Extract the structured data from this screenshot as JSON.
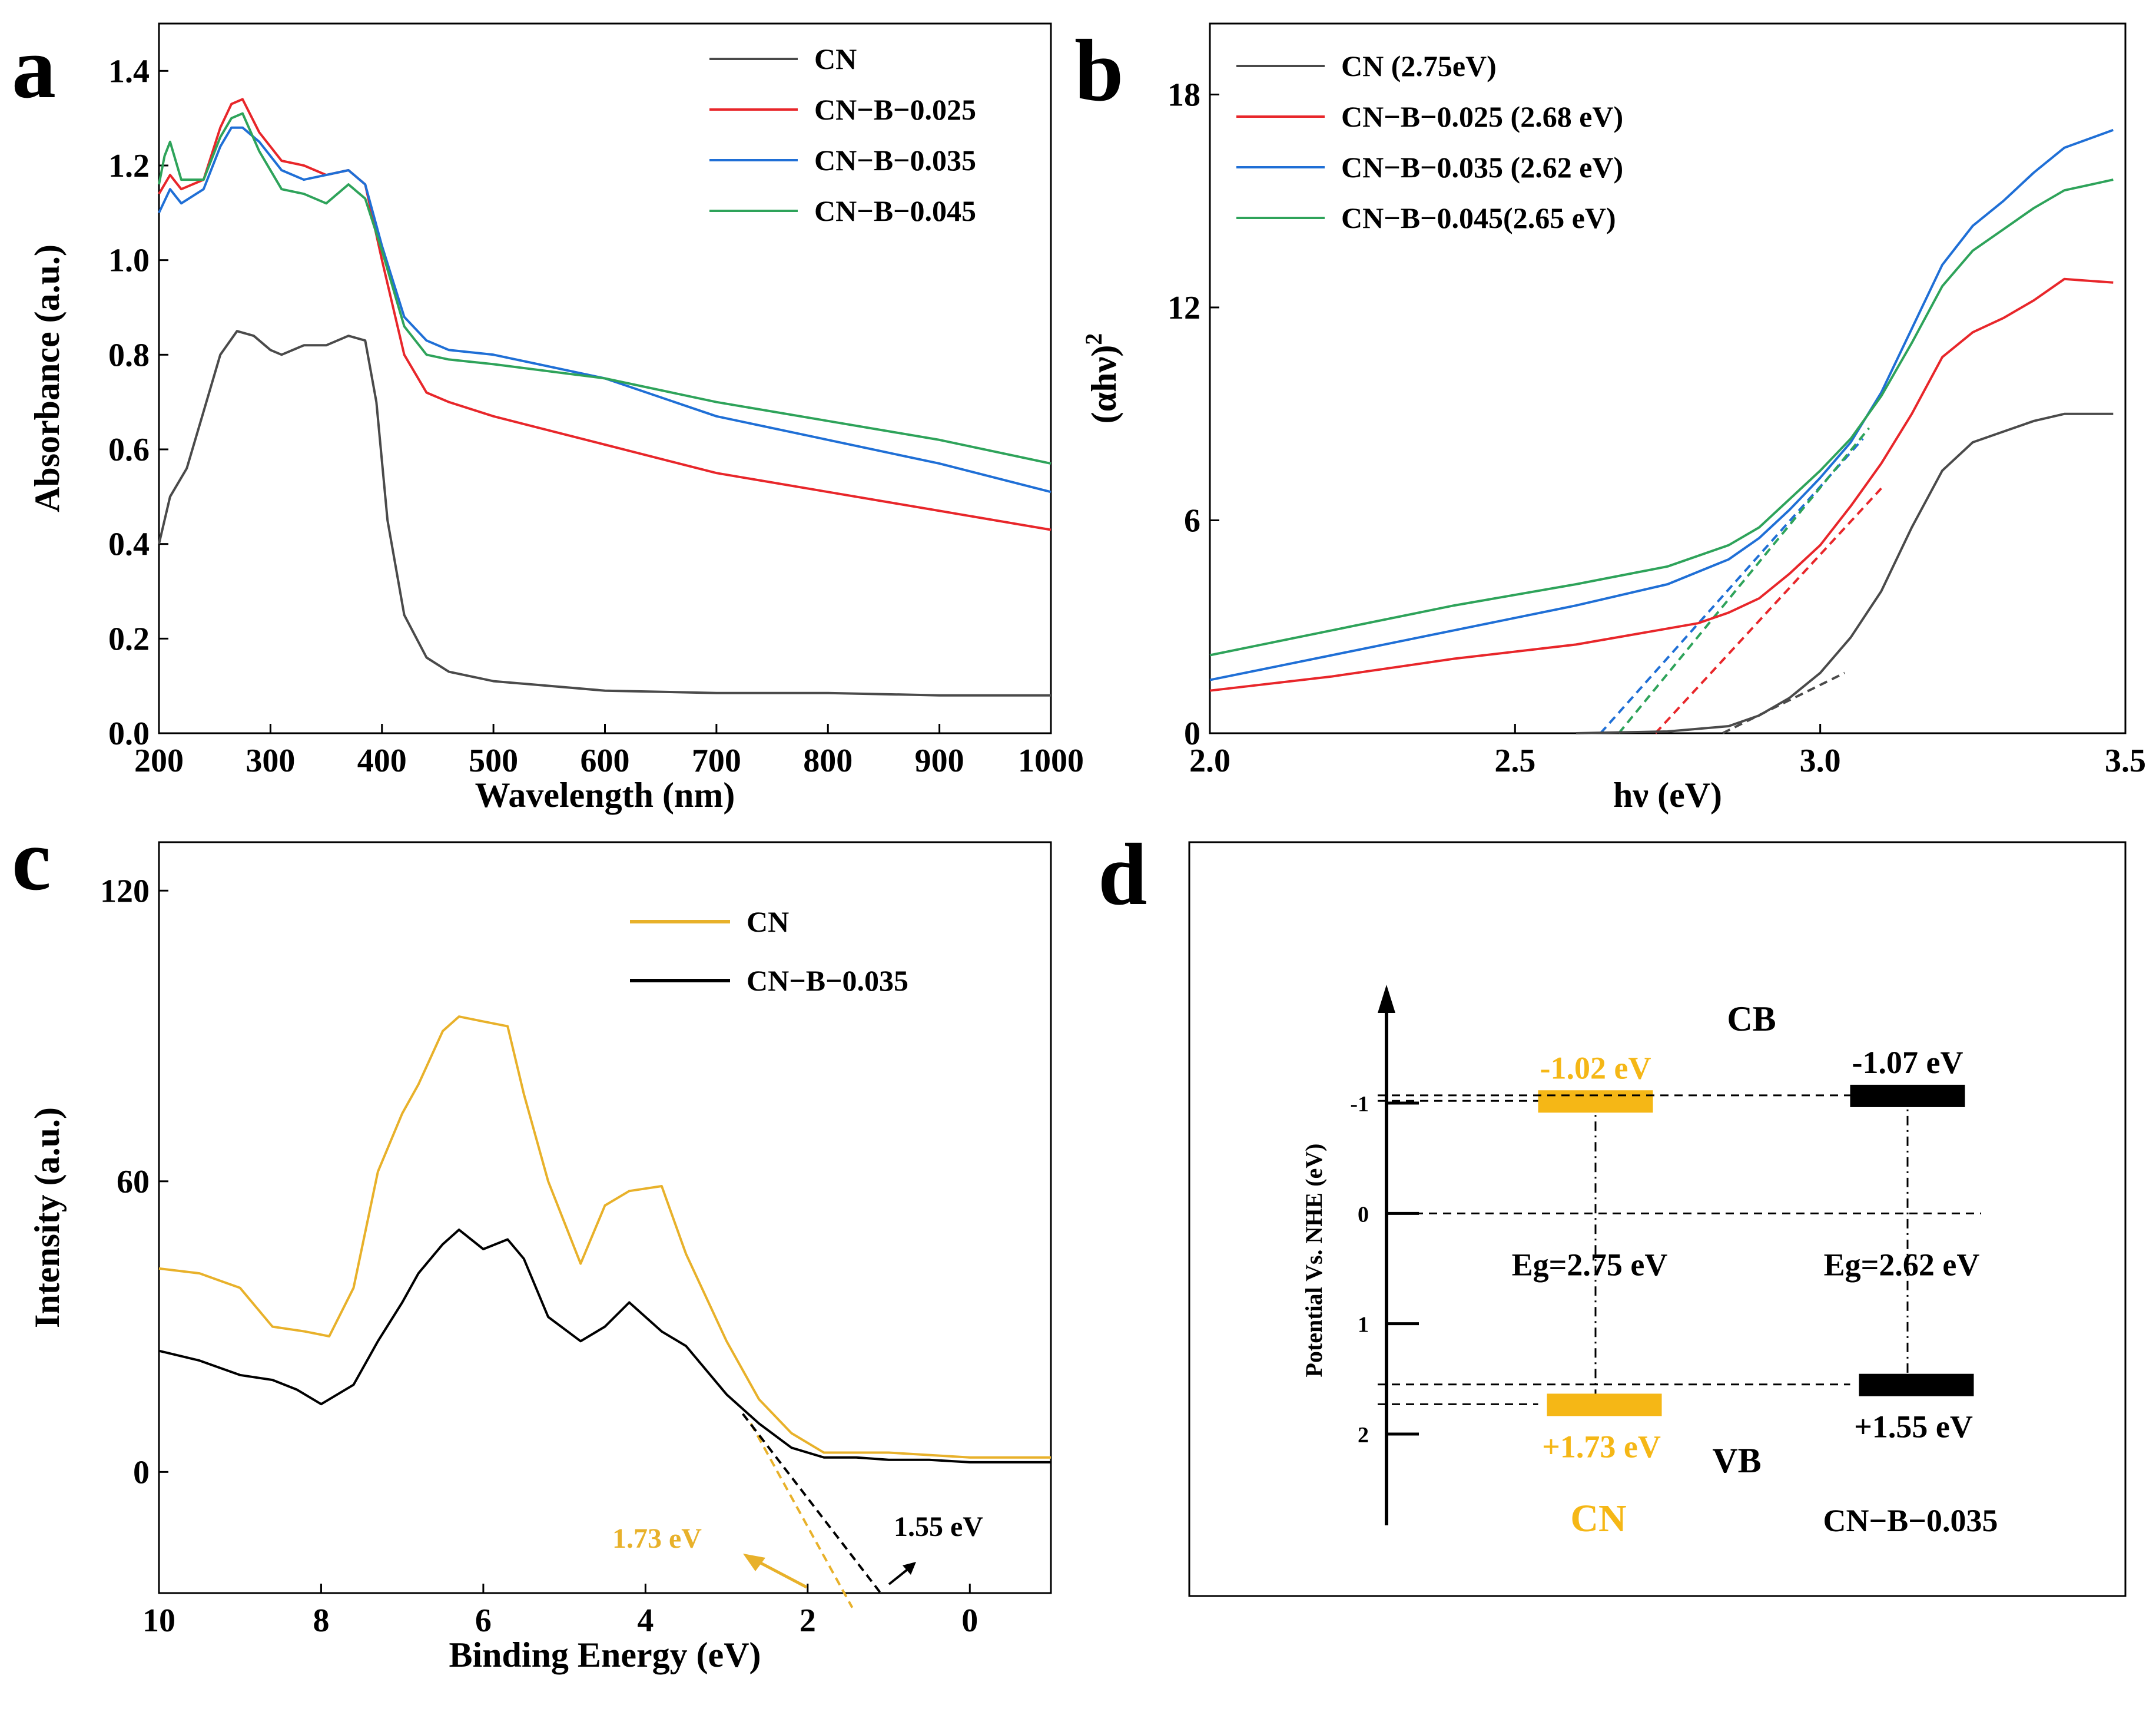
{
  "panels": {
    "a": {
      "letter": "a"
    },
    "b": {
      "letter": "b"
    },
    "c": {
      "letter": "c"
    },
    "d": {
      "letter": "d"
    }
  },
  "chart_data": [
    {
      "id": "a",
      "type": "line",
      "title": "",
      "xlabel": "Wavelength (nm)",
      "ylabel": "Absorbance (a.u.)",
      "xlim": [
        200,
        1000
      ],
      "ylim": [
        0,
        1.5
      ],
      "xticks": [
        200,
        300,
        400,
        500,
        600,
        700,
        800,
        900,
        1000
      ],
      "yticks": [
        0.0,
        0.2,
        0.4,
        0.6,
        0.8,
        1.0,
        1.2,
        1.4
      ],
      "ytick_labels": [
        "0.0",
        "0.2",
        "0.4",
        "0.6",
        "0.8",
        "1.0",
        "1.2",
        "1.4"
      ],
      "legend_position": "top-right",
      "series": [
        {
          "name": "CN",
          "color": "#4a4a4a",
          "x": [
            200,
            210,
            225,
            240,
            255,
            270,
            285,
            300,
            310,
            330,
            350,
            370,
            385,
            395,
            405,
            420,
            440,
            460,
            500,
            600,
            700,
            800,
            900,
            1000
          ],
          "y": [
            0.4,
            0.5,
            0.56,
            0.68,
            0.8,
            0.85,
            0.84,
            0.81,
            0.8,
            0.82,
            0.82,
            0.84,
            0.83,
            0.7,
            0.45,
            0.25,
            0.16,
            0.13,
            0.11,
            0.09,
            0.085,
            0.085,
            0.08,
            0.08
          ]
        },
        {
          "name": "CN−B−0.025",
          "color": "#e8262a",
          "x": [
            200,
            210,
            220,
            240,
            255,
            265,
            275,
            290,
            310,
            330,
            350,
            370,
            385,
            400,
            420,
            440,
            460,
            500,
            600,
            700,
            800,
            900,
            1000
          ],
          "y": [
            1.14,
            1.18,
            1.15,
            1.17,
            1.28,
            1.33,
            1.34,
            1.27,
            1.21,
            1.2,
            1.18,
            1.19,
            1.16,
            1.0,
            0.8,
            0.72,
            0.7,
            0.67,
            0.61,
            0.55,
            0.51,
            0.47,
            0.43
          ]
        },
        {
          "name": "CN−B−0.035",
          "color": "#1f6fd6",
          "x": [
            200,
            210,
            220,
            240,
            255,
            265,
            275,
            290,
            310,
            330,
            350,
            370,
            385,
            400,
            420,
            440,
            460,
            500,
            600,
            700,
            800,
            900,
            1000
          ],
          "y": [
            1.1,
            1.15,
            1.12,
            1.15,
            1.24,
            1.28,
            1.28,
            1.25,
            1.19,
            1.17,
            1.18,
            1.19,
            1.16,
            1.03,
            0.88,
            0.83,
            0.81,
            0.8,
            0.75,
            0.67,
            0.62,
            0.57,
            0.51
          ]
        },
        {
          "name": "CN−B−0.045",
          "color": "#2ea35a",
          "x": [
            200,
            205,
            210,
            220,
            240,
            255,
            265,
            275,
            290,
            310,
            330,
            350,
            370,
            385,
            400,
            420,
            440,
            460,
            500,
            600,
            700,
            800,
            900,
            1000
          ],
          "y": [
            1.16,
            1.22,
            1.25,
            1.17,
            1.17,
            1.26,
            1.3,
            1.31,
            1.23,
            1.15,
            1.14,
            1.12,
            1.16,
            1.13,
            1.02,
            0.86,
            0.8,
            0.79,
            0.78,
            0.75,
            0.7,
            0.66,
            0.62,
            0.57
          ]
        }
      ]
    },
    {
      "id": "b",
      "type": "line",
      "title": "",
      "xlabel": "hν (eV)",
      "ylabel": "(αhν)",
      "ylabel_sup": "2",
      "xlim": [
        2.0,
        3.5
      ],
      "ylim": [
        0,
        20
      ],
      "xticks": [
        2.0,
        2.5,
        3.0,
        3.5
      ],
      "xtick_labels": [
        "2.0",
        "2.5",
        "3.0",
        "3.5"
      ],
      "yticks": [
        0,
        6,
        12,
        18
      ],
      "ytick_labels": [
        "0",
        "6",
        "12",
        "18"
      ],
      "legend_position": "top-left",
      "series": [
        {
          "name": "CN  (2.75eV)",
          "color": "#4a4a4a",
          "x": [
            2.6,
            2.75,
            2.85,
            2.9,
            2.95,
            3.0,
            3.05,
            3.1,
            3.15,
            3.2,
            3.25,
            3.3,
            3.35,
            3.4,
            3.48
          ],
          "y": [
            0,
            0.05,
            0.2,
            0.5,
            1.0,
            1.7,
            2.7,
            4.0,
            5.8,
            7.4,
            8.2,
            8.5,
            8.8,
            9.0,
            9.0
          ]
        },
        {
          "name": "CN−B−0.025 (2.68 eV)",
          "color": "#e8262a",
          "x": [
            2.0,
            2.2,
            2.4,
            2.6,
            2.8,
            2.85,
            2.9,
            2.95,
            3.0,
            3.05,
            3.1,
            3.15,
            3.2,
            3.25,
            3.3,
            3.35,
            3.4,
            3.48
          ],
          "y": [
            1.2,
            1.6,
            2.1,
            2.5,
            3.1,
            3.4,
            3.8,
            4.5,
            5.3,
            6.4,
            7.6,
            9.0,
            10.6,
            11.3,
            11.7,
            12.2,
            12.8,
            12.7
          ]
        },
        {
          "name": "CN−B−0.035 (2.62 eV)",
          "color": "#1f6fd6",
          "x": [
            2.0,
            2.2,
            2.4,
            2.6,
            2.75,
            2.85,
            2.9,
            2.95,
            3.0,
            3.05,
            3.1,
            3.15,
            3.2,
            3.25,
            3.3,
            3.35,
            3.4,
            3.48
          ],
          "y": [
            1.5,
            2.2,
            2.9,
            3.6,
            4.2,
            4.9,
            5.5,
            6.3,
            7.2,
            8.2,
            9.6,
            11.4,
            13.2,
            14.3,
            15.0,
            15.8,
            16.5,
            17.0
          ]
        },
        {
          "name": "CN−B−0.045(2.65 eV)",
          "color": "#2ea35a",
          "x": [
            2.0,
            2.2,
            2.4,
            2.6,
            2.75,
            2.85,
            2.9,
            2.95,
            3.0,
            3.05,
            3.1,
            3.15,
            3.2,
            3.25,
            3.3,
            3.35,
            3.4,
            3.48
          ],
          "y": [
            2.2,
            2.9,
            3.6,
            4.2,
            4.7,
            5.3,
            5.8,
            6.6,
            7.4,
            8.3,
            9.5,
            11.0,
            12.6,
            13.6,
            14.2,
            14.8,
            15.3,
            15.6
          ]
        }
      ],
      "tangents": [
        {
          "color": "#4a4a4a",
          "x": [
            2.84,
            3.04
          ],
          "y": [
            0.0,
            1.7
          ]
        },
        {
          "color": "#e8262a",
          "x": [
            2.73,
            3.1
          ],
          "y": [
            0.0,
            6.9
          ]
        },
        {
          "color": "#1f6fd6",
          "x": [
            2.64,
            3.07
          ],
          "y": [
            0.0,
            8.3
          ]
        },
        {
          "color": "#2ea35a",
          "x": [
            2.67,
            3.08
          ],
          "y": [
            0.0,
            8.6
          ]
        }
      ]
    },
    {
      "id": "c",
      "type": "line",
      "title": "",
      "xlabel": "Binding Energy (eV)",
      "ylabel": "Intensity (a.u.)",
      "xlim": [
        10,
        -1
      ],
      "ylim": [
        -25,
        130
      ],
      "xticks": [
        10,
        8,
        6,
        4,
        2,
        0
      ],
      "xtick_labels": [
        "10",
        "8",
        "6",
        "4",
        "2",
        "0"
      ],
      "yticks": [
        0,
        60,
        120
      ],
      "ytick_labels": [
        "0",
        "60",
        "120"
      ],
      "legend_position": "top-right",
      "series": [
        {
          "name": "CN",
          "color": "#e8b12a",
          "x": [
            10,
            9.5,
            9.0,
            8.6,
            8.2,
            7.9,
            7.6,
            7.3,
            7.0,
            6.8,
            6.5,
            6.3,
            6.0,
            5.7,
            5.5,
            5.2,
            4.8,
            4.5,
            4.2,
            3.8,
            3.5,
            3.0,
            2.6,
            2.2,
            1.8,
            1.4,
            1.0,
            0.5,
            0,
            -0.5,
            -1
          ],
          "y": [
            42,
            41,
            38,
            30,
            29,
            28,
            38,
            62,
            74,
            80,
            91,
            94,
            93,
            92,
            78,
            60,
            43,
            55,
            58,
            59,
            45,
            27,
            15,
            8,
            4,
            4,
            4,
            3.5,
            3,
            3,
            3
          ]
        },
        {
          "name": "CN−B−0.035",
          "color": "#000000",
          "x": [
            10,
            9.5,
            9.0,
            8.6,
            8.3,
            8.0,
            7.6,
            7.3,
            7.0,
            6.8,
            6.5,
            6.3,
            6.0,
            5.7,
            5.5,
            5.2,
            4.8,
            4.5,
            4.2,
            3.8,
            3.5,
            3.0,
            2.6,
            2.2,
            1.8,
            1.4,
            1.0,
            0.5,
            0,
            -0.5,
            -1
          ],
          "y": [
            25,
            23,
            20,
            19,
            17,
            14,
            18,
            27,
            35,
            41,
            47,
            50,
            46,
            48,
            44,
            32,
            27,
            30,
            35,
            29,
            26,
            16,
            10,
            5,
            3,
            3,
            2.5,
            2.5,
            2,
            2,
            2
          ]
        }
      ],
      "tangents": [
        {
          "color": "#e8b12a",
          "x": [
            2.7,
            1.45
          ],
          "y": [
            10,
            -28
          ]
        },
        {
          "color": "#000000",
          "x": [
            2.8,
            1.1
          ],
          "y": [
            12,
            -25
          ]
        }
      ],
      "annotations": [
        {
          "text": "1.73 eV",
          "color": "#e8b12a"
        },
        {
          "text": "1.55 eV",
          "color": "#000000"
        }
      ]
    },
    {
      "id": "d",
      "type": "diagram",
      "ylabel": "Potential Vs. NHE (eV)",
      "yticks": [
        -1,
        0,
        1,
        2
      ],
      "ytick_labels": [
        "-1",
        "0",
        "1",
        "2"
      ],
      "cb_label": "CB",
      "vb_label": "VB",
      "materials": [
        {
          "name": "CN",
          "color": "#f5b716",
          "cb": -1.02,
          "vb": 1.73,
          "cb_label": "-1.02 eV",
          "vb_label": "+1.73 eV",
          "eg_label": "Eg=2.75 eV"
        },
        {
          "name": "CN−B−0.035",
          "color": "#000000",
          "cb": -1.07,
          "vb": 1.55,
          "cb_label": "-1.07 eV",
          "vb_label": "+1.55 eV",
          "eg_label": "Eg=2.62 eV"
        }
      ]
    }
  ]
}
